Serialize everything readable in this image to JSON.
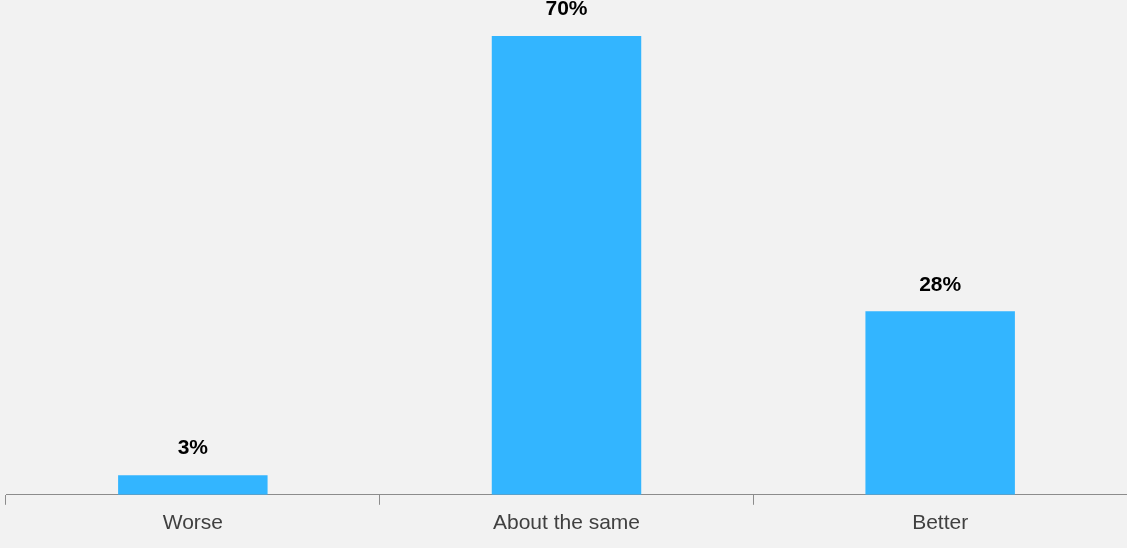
{
  "chart_data": {
    "type": "bar",
    "categories": [
      "Worse",
      "About the same",
      "Better"
    ],
    "values": [
      3,
      70,
      28
    ],
    "color": "#33b5ff",
    "value_labels": [
      "3%",
      "70%",
      "28%"
    ],
    "grid": false,
    "legend": false
  }
}
